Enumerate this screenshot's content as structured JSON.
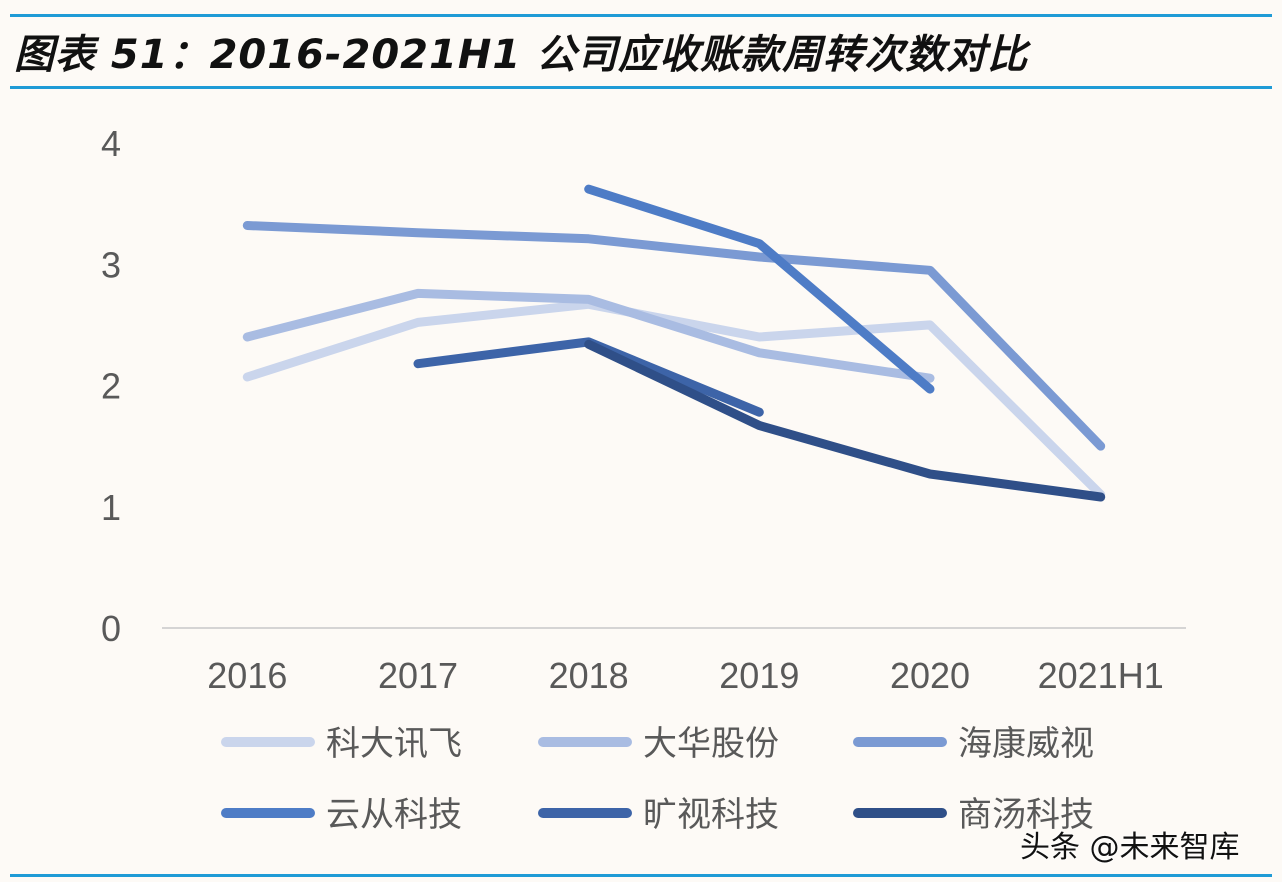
{
  "title": "图表 51：2016-2021H1 公司应收账款周转次数对比",
  "watermark": "头条 @未来智库",
  "chart_data": {
    "type": "line",
    "categories": [
      "2016",
      "2017",
      "2018",
      "2019",
      "2020",
      "2021H1"
    ],
    "yticks": [
      "0",
      "1",
      "2",
      "3",
      "4"
    ],
    "ylim": [
      0,
      4
    ],
    "grid": false,
    "legend_position": "bottom",
    "series": [
      {
        "name": "科大讯飞",
        "color": "#cad5ec",
        "values": [
          2.07,
          2.52,
          2.67,
          2.4,
          2.5,
          1.1
        ]
      },
      {
        "name": "大华股份",
        "color": "#a9bce2",
        "values": [
          2.4,
          2.76,
          2.71,
          2.27,
          2.06,
          null
        ]
      },
      {
        "name": "海康威视",
        "color": "#7b9ad3",
        "values": [
          3.32,
          3.26,
          3.21,
          3.06,
          2.95,
          1.5
        ]
      },
      {
        "name": "云从科技",
        "color": "#4e7cc6",
        "values": [
          null,
          null,
          3.62,
          3.17,
          1.97,
          null
        ]
      },
      {
        "name": "旷视科技",
        "color": "#3d64a8",
        "values": [
          null,
          2.18,
          2.36,
          1.78,
          null,
          null
        ]
      },
      {
        "name": "商汤科技",
        "color": "#2f4f88",
        "values": [
          null,
          null,
          2.34,
          1.67,
          1.27,
          1.08
        ]
      }
    ]
  }
}
